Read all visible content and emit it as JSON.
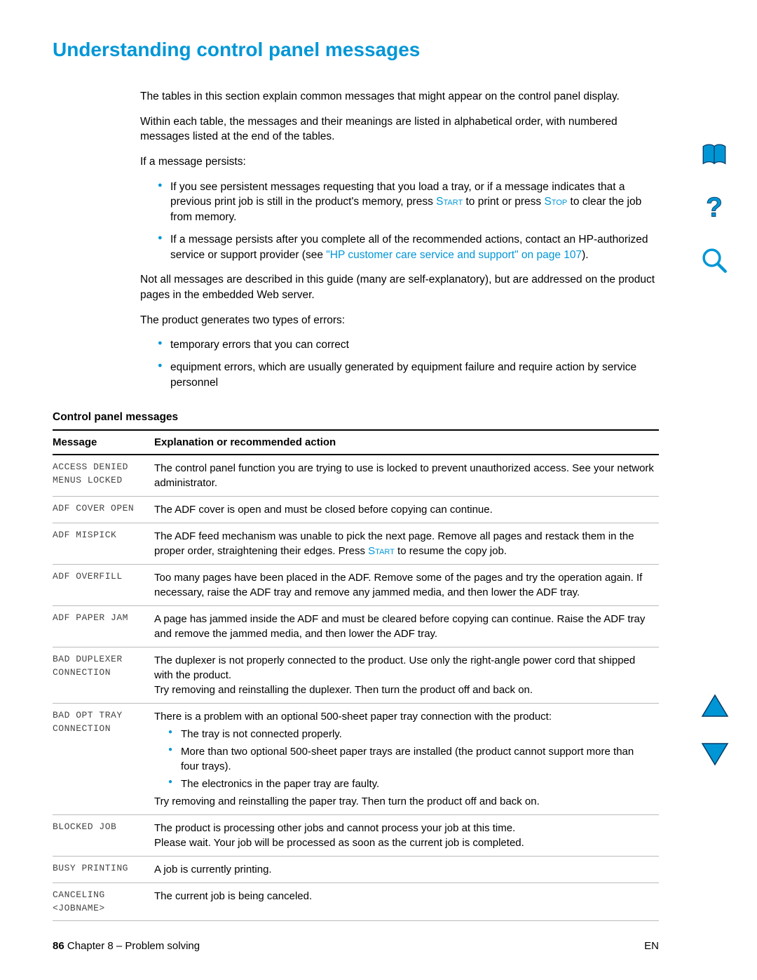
{
  "title": "Understanding control panel messages",
  "intro": {
    "p1": "The tables in this section explain common messages that might appear on the control panel display.",
    "p2": "Within each table, the messages and their meanings are listed in alphabetical order, with numbered messages listed at the end of the tables.",
    "p3": "If a message persists:",
    "b1a": "If you see persistent messages requesting that you load a tray, or if a message indicates that a previous print job is still in the product's memory, press ",
    "b1_start": "Start",
    "b1b": " to print or press ",
    "b1_stop": "Stop",
    "b1c": " to clear the job from memory.",
    "b2a": "If a message persists after you complete all of the recommended actions, contact an HP-authorized service or support provider (see ",
    "b2_link": "\"HP customer care service and support\" on page 107",
    "b2b": ").",
    "p4": "Not all messages are described in this guide (many are self-explanatory), but are addressed on the product pages in the embedded Web server.",
    "p5": "The product generates two types of errors:",
    "e1": "temporary errors that you can correct",
    "e2": "equipment errors, which are usually generated by equipment failure and require action by service personnel"
  },
  "table_title": "Control panel messages",
  "headers": {
    "msg": "Message",
    "exp": "Explanation or recommended action"
  },
  "rows": [
    {
      "msg": "ACCESS DENIED\nMENUS LOCKED",
      "exp": "The control panel function you are trying to use is locked to prevent unauthorized access. See your network administrator."
    },
    {
      "msg": "ADF COVER OPEN",
      "exp": "The ADF cover is open and must be closed before copying can continue."
    },
    {
      "msg": "ADF MISPICK",
      "exp_a": "The ADF feed mechanism was unable to pick the next page. Remove all pages and restack them in the proper order, straightening their edges. Press ",
      "exp_start": "Start",
      "exp_b": " to resume the copy job."
    },
    {
      "msg": "ADF OVERFILL",
      "exp": "Too many pages have been placed in the ADF. Remove some of the pages and try the operation again. If necessary, raise the ADF tray and remove any jammed media, and then lower the ADF tray."
    },
    {
      "msg": "ADF PAPER JAM",
      "exp": "A page has jammed inside the ADF and must be cleared before copying can continue. Raise the ADF tray and remove the jammed media, and then lower the ADF tray."
    },
    {
      "msg": "BAD DUPLEXER\nCONNECTION",
      "exp": "The duplexer is not properly connected to the product. Use only the right-angle power cord that shipped with the product.\nTry removing and reinstalling the duplexer. Then turn the product off and back on."
    },
    {
      "msg": "BAD OPT TRAY\nCONNECTION",
      "exp_pre": "There is a problem with an optional 500-sheet paper tray connection with the product:",
      "list": [
        "The tray is not connected properly.",
        "More than two optional 500-sheet paper trays are installed (the product cannot support more than four trays).",
        "The electronics in the paper tray are faulty."
      ],
      "exp_post": "Try removing and reinstalling the paper tray. Then turn the product off and back on."
    },
    {
      "msg": "BLOCKED JOB",
      "exp": "The product is processing other jobs and cannot process your job at this time.\nPlease wait. Your job will be processed as soon as the current job is completed."
    },
    {
      "msg": "BUSY PRINTING",
      "exp": "A job is currently printing."
    },
    {
      "msg": "CANCELING\n<JOBNAME>",
      "exp": "The current job is being canceled."
    }
  ],
  "footer": {
    "page": "86",
    "chapter": " Chapter 8 – Problem solving",
    "lang": "EN"
  },
  "colors": {
    "accent": "#0096d6"
  }
}
